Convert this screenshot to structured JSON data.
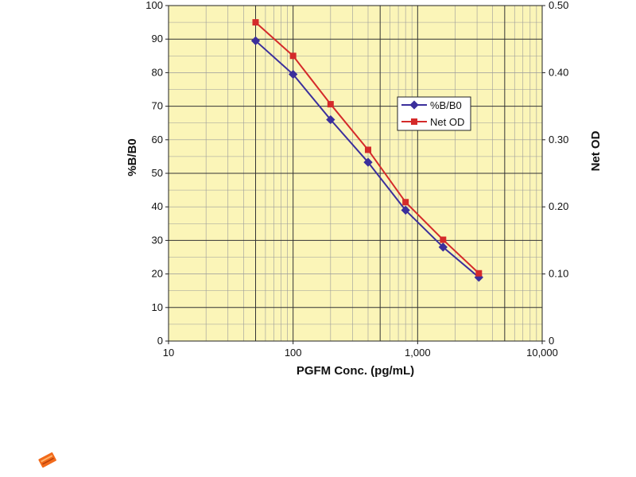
{
  "chart_data": {
    "type": "line",
    "xlabel": "PGFM Conc. (pg/mL)",
    "ylabel": "%B/B0",
    "y2label": "Net OD",
    "xscale": "log",
    "xlim": [
      10,
      10000
    ],
    "ylim": [
      0,
      100
    ],
    "y2lim": [
      0,
      0.5
    ],
    "x_tick_labels": [
      "10",
      "100",
      "1,000",
      "10,000"
    ],
    "y_tick_labels": [
      "0",
      "10",
      "20",
      "30",
      "40",
      "50",
      "60",
      "70",
      "80",
      "90",
      "100"
    ],
    "y2_tick_labels": [
      "0",
      "0.10",
      "0.20",
      "0.30",
      "0.40",
      "0.50"
    ],
    "grid": true,
    "legend_position": "upper-right",
    "series": [
      {
        "name": "%B/B0",
        "axis": "left",
        "color": "#3b2f9c",
        "marker": "diamond",
        "x": [
          50,
          100,
          200,
          400,
          800,
          1600,
          3100
        ],
        "y": [
          89.5,
          79.5,
          66,
          53.3,
          39,
          28,
          19
        ]
      },
      {
        "name": "Net OD",
        "axis": "right",
        "color": "#d42a2a",
        "marker": "square",
        "x": [
          50,
          100,
          200,
          400,
          800,
          1600,
          3100
        ],
        "y": [
          0.475,
          0.425,
          0.353,
          0.285,
          0.207,
          0.151,
          0.101
        ]
      }
    ]
  },
  "colors": {
    "plot_background": "#fbf5b8",
    "major_grid": "#333333",
    "minor_grid": "#9a9a9a",
    "logo": "#f26a1b"
  },
  "icons": {
    "corner_logo": "cayman-logo-icon"
  }
}
